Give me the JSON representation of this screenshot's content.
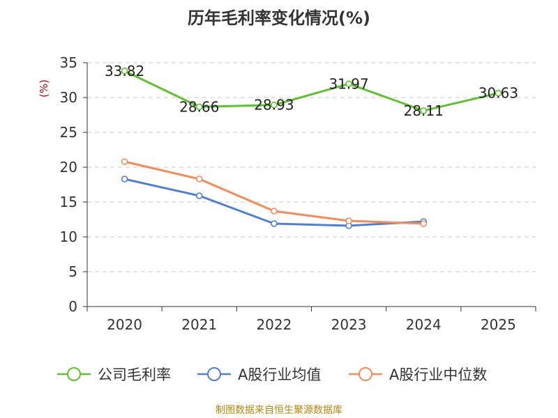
{
  "title": "历年毛利率变化情况(%)",
  "source_note": "制图数据来自恒生聚源数据库",
  "chart_data": {
    "type": "line",
    "title": "历年毛利率变化情况(%)",
    "xlabel": "",
    "ylabel": "(%)",
    "categories": [
      "2020",
      "2021",
      "2022",
      "2023",
      "2024",
      "2025"
    ],
    "ylim": [
      0,
      35
    ],
    "yticks": [
      0,
      5,
      10,
      15,
      20,
      25,
      30,
      35
    ],
    "grid": true,
    "legend_position": "bottom",
    "series": [
      {
        "name": "公司毛利率",
        "color": "#5cc22d",
        "values": [
          33.82,
          28.66,
          28.93,
          31.97,
          28.11,
          30.63
        ],
        "labels": [
          "33.82",
          "28.66",
          "28.93",
          "31.97",
          "28.11",
          "30.63"
        ]
      },
      {
        "name": "A股行业均值",
        "color": "#4e7fd8",
        "values": [
          18.3,
          15.9,
          11.9,
          11.6,
          12.2,
          null
        ]
      },
      {
        "name": "A股行业中位数",
        "color": "#f68b55",
        "values": [
          20.8,
          18.3,
          13.7,
          12.3,
          11.9,
          null
        ]
      }
    ]
  }
}
